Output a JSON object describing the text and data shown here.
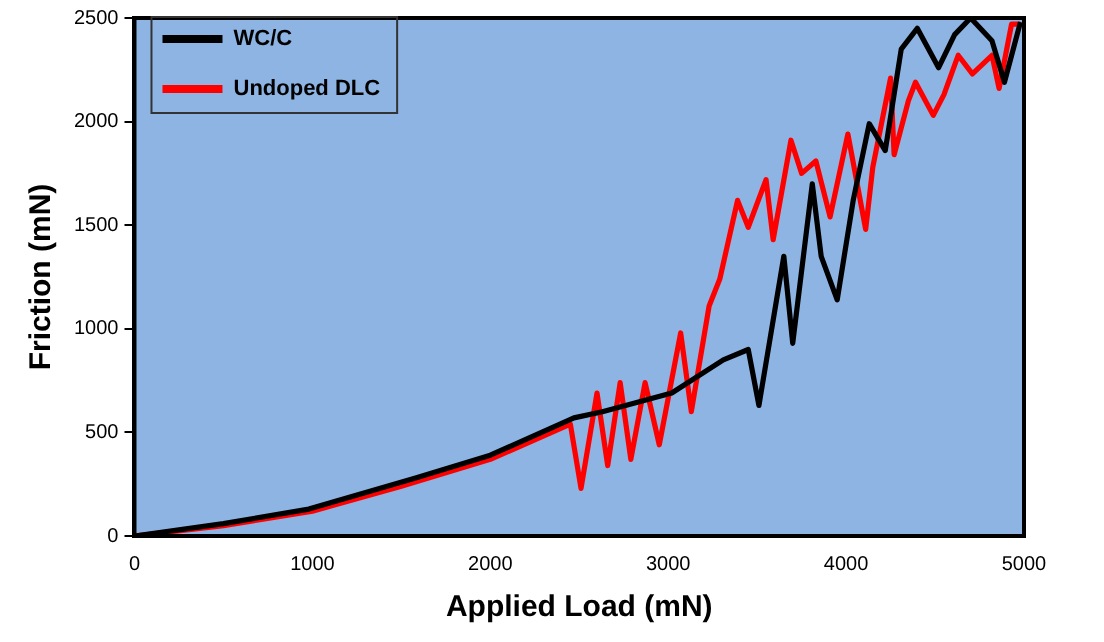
{
  "chart_data": {
    "type": "line",
    "xlabel": "Applied Load (mN)",
    "ylabel": "Friction (mN)",
    "xlim": [
      0,
      5000
    ],
    "xticks": [
      0,
      1000,
      2000,
      3000,
      4000,
      5000
    ],
    "ylim": [
      0,
      2500
    ],
    "yticks": [
      0,
      500,
      1000,
      1500,
      2000,
      2500
    ],
    "grid": false,
    "legend": "top left",
    "marker": "none",
    "line_style": "solid",
    "series": [
      {
        "name": "WC/C",
        "color": "#000000",
        "x": [
          0,
          500,
          980,
          1580,
          2000,
          2470,
          2630,
          3020,
          3310,
          3450,
          3510,
          3650,
          3700,
          3810,
          3860,
          3950,
          4040,
          4130,
          4220,
          4310,
          4400,
          4520,
          4610,
          4700,
          4820,
          4890,
          4980
        ],
        "values": [
          0,
          60,
          130,
          280,
          390,
          570,
          600,
          690,
          850,
          900,
          630,
          1350,
          930,
          1700,
          1350,
          1140,
          1620,
          1990,
          1860,
          2350,
          2450,
          2260,
          2420,
          2500,
          2390,
          2190,
          2480
        ]
      },
      {
        "name": "Undoped DLC",
        "color": "#ff0000",
        "x": [
          0,
          500,
          1000,
          1500,
          2000,
          2450,
          2510,
          2600,
          2660,
          2730,
          2790,
          2870,
          2950,
          3070,
          3130,
          3230,
          3290,
          3390,
          3450,
          3550,
          3590,
          3690,
          3750,
          3830,
          3910,
          4010,
          4110,
          4150,
          4250,
          4270,
          4350,
          4390,
          4490,
          4550,
          4630,
          4710,
          4820,
          4860,
          4930,
          4980
        ],
        "values": [
          0,
          50,
          120,
          240,
          370,
          540,
          230,
          690,
          340,
          740,
          370,
          740,
          440,
          980,
          600,
          1110,
          1240,
          1620,
          1490,
          1720,
          1430,
          1910,
          1750,
          1810,
          1540,
          1940,
          1480,
          1780,
          2210,
          1840,
          2100,
          2190,
          2030,
          2130,
          2320,
          2230,
          2320,
          2160,
          2470,
          2470
        ]
      }
    ]
  }
}
